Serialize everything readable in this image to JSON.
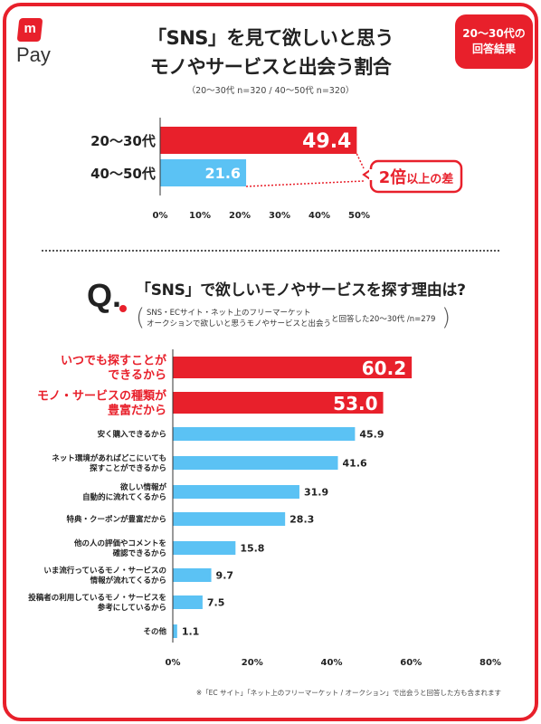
{
  "brand": {
    "logo_mark": "m",
    "logo_text": "Pay",
    "accent": "#e8202b",
    "secondary": "#5bc2f4"
  },
  "badge": {
    "line1": "20〜30代の",
    "line2": "回答結果"
  },
  "header": {
    "title_line1": "「SNS」を見て欲しいと思う",
    "title_line2": "モノやサービスと出会う割合",
    "subtitle": "（20〜30代 n=320 / 40〜50代 n=320）"
  },
  "callout": {
    "big": "2倍",
    "small": "以上の差"
  },
  "question": {
    "mark": "Q.",
    "title": "「SNS」で欲しいモノやサービスを探す理由は?",
    "note_line1": "SNS・ECサイト・ネット上のフリーマーケット",
    "note_line2": "オークションで欲しいと思うモノやサービスと出会う",
    "note_tail": "と回答した20〜30代 /n=279"
  },
  "footnote": "※「EC サイト」「ネット上のフリーマーケット / オークション」で出会うと回答した方も含まれます",
  "chart_data": [
    {
      "type": "bar",
      "orientation": "horizontal",
      "categories": [
        "20〜30代",
        "40〜50代"
      ],
      "values": [
        49.4,
        21.6
      ],
      "colors": [
        "#e8202b",
        "#5bc2f4"
      ],
      "xlim": [
        0,
        50
      ],
      "xticks": [
        "0%",
        "10%",
        "20%",
        "30%",
        "40%",
        "50%"
      ],
      "grid": false
    },
    {
      "type": "bar",
      "orientation": "horizontal",
      "categories": [
        "いつでも探すことが\nできるから",
        "モノ・サービスの種類が\n豊富だから",
        "安く購入できるから",
        "ネット環境があればどこにいても\n探すことができるから",
        "欲しい情報が\n自動的に流れてくるから",
        "特典・クーポンが豊富だから",
        "他の人の評価やコメントを\n確認できるから",
        "いま流行っているモノ・サービスの\n情報が流れてくるから",
        "投稿者の利用しているモノ・サービスを\n参考にしているから",
        "その他"
      ],
      "values": [
        60.2,
        53.0,
        45.9,
        41.6,
        31.9,
        28.3,
        15.8,
        9.7,
        7.5,
        1.1
      ],
      "value_labels": [
        "60.2",
        "53.0",
        "45.9",
        "41.6",
        "31.9",
        "28.3",
        "15.8",
        "9.7",
        "7.5",
        "1.1"
      ],
      "highlight_top": 2,
      "xlim": [
        0,
        80
      ],
      "xticks": [
        "0%",
        "20%",
        "40%",
        "60%",
        "80%"
      ],
      "grid": false
    }
  ]
}
